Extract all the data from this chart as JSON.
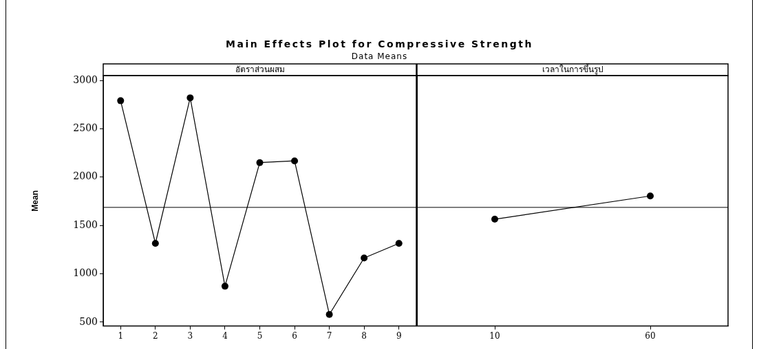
{
  "chart_data": [
    {
      "type": "line",
      "title": "Main Effects Plot for Compressive Strength",
      "subtitle": "Data Means",
      "xlabel": "อัตราส่วนผสม",
      "ylabel": "Mean",
      "categories": [
        "1",
        "2",
        "3",
        "4",
        "5",
        "6",
        "7",
        "8",
        "9"
      ],
      "values": [
        2790,
        1315,
        2820,
        872,
        2150,
        2168,
        580,
        1164,
        1315
      ],
      "color": "#000000",
      "marker": "circle",
      "ylim": [
        460,
        3050
      ],
      "yticks": [
        500,
        1000,
        1500,
        2000,
        2500,
        3000
      ],
      "grid": false,
      "ref_lines": [
        {
          "axis": "y",
          "value": 1687
        }
      ]
    },
    {
      "type": "line",
      "xlabel": "เวลาในการขึ้นรูป",
      "categories": [
        "10",
        "60"
      ],
      "values": [
        1565,
        1805
      ],
      "color": "#000000",
      "marker": "circle",
      "ylim": [
        460,
        3050
      ],
      "yticks": [
        500,
        1000,
        1500,
        2000,
        2500,
        3000
      ],
      "grid": false,
      "tick_labels": "x",
      "ref_lines": [
        {
          "axis": "y",
          "value": 1687
        }
      ]
    }
  ]
}
